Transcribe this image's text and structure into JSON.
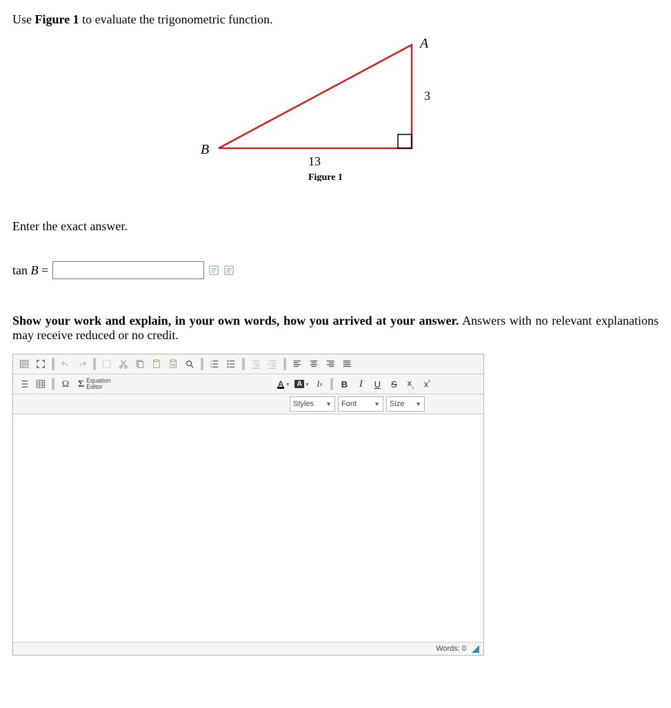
{
  "question": {
    "prefix": "Use ",
    "bold_ref": "Figure 1",
    "suffix": " to evaluate the trigonometric function.",
    "enter_prompt": "Enter the exact answer.",
    "answer_label_fn": "tan",
    "answer_label_var": "B",
    "answer_label_eq": " =",
    "answer_value": "",
    "show_work_bold": "Show your work and explain, in your own words, how you arrived at your answer.",
    "show_work_rest": " Answers with no relevant explanations may receive reduced or no credit."
  },
  "figure": {
    "caption": "Figure 1",
    "vertex_A": "A",
    "vertex_B": "B",
    "side_bottom_label": "13",
    "side_right_label": "3",
    "points": {
      "B": [
        40,
        170
      ],
      "C": [
        320,
        170
      ],
      "A": [
        320,
        20
      ]
    },
    "stroke_color": "#cc2222",
    "stroke_width": 2.5,
    "label_fontsize": 20,
    "caption_fontsize": 14
  },
  "editor": {
    "words_label": "Words: 0",
    "styles_label": "Styles",
    "font_label": "Font",
    "size_label": "Size",
    "eq_editor_label_a": "Equation",
    "eq_editor_label_b": "Editor",
    "sigma": "Σ",
    "omega": "Ω"
  }
}
